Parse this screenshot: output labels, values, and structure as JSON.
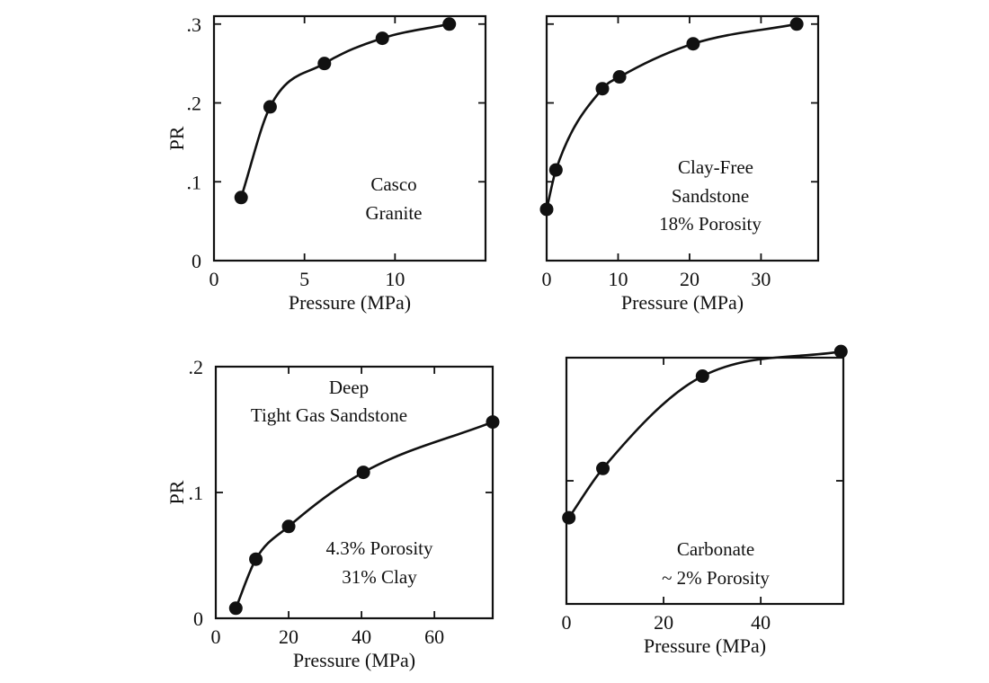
{
  "chart_data": [
    {
      "type": "scatter",
      "title": "",
      "xlabel": "Pressure (MPa)",
      "ylabel": "PR",
      "xlim": [
        0,
        15
      ],
      "ylim": [
        0,
        0.31
      ],
      "xticks": [
        0,
        5,
        10
      ],
      "xtick_labels": [
        "0",
        "5",
        "10"
      ],
      "yticks": [
        0,
        0.1,
        0.2,
        0.3
      ],
      "ytick_labels": [
        "0",
        ".1",
        ".2",
        ".3"
      ],
      "series": [
        {
          "x": [
            1.5,
            3.1,
            6.1,
            9.3,
            13.0
          ],
          "values": [
            0.08,
            0.195,
            0.25,
            0.282,
            0.3
          ]
        }
      ],
      "annotations": [
        "Casco",
        "Granite"
      ],
      "grid": false
    },
    {
      "type": "scatter",
      "title": "",
      "xlabel": "Pressure (MPa)",
      "ylabel": "",
      "xlim": [
        0,
        38
      ],
      "ylim": [
        0,
        0.31
      ],
      "xticks": [
        0,
        10,
        20,
        30
      ],
      "xtick_labels": [
        "0",
        "10",
        "20",
        "30"
      ],
      "yticks": [
        0,
        0.1,
        0.2,
        0.3
      ],
      "ytick_labels": [],
      "series": [
        {
          "x": [
            0,
            1.3,
            7.8,
            10.2,
            20.5,
            35.0
          ],
          "values": [
            0.065,
            0.115,
            0.218,
            0.233,
            0.275,
            0.3
          ]
        }
      ],
      "annotations": [
        "Clay-Free",
        "Sandstone",
        "18% Porosity"
      ],
      "grid": false
    },
    {
      "type": "scatter",
      "title": "",
      "xlabel": "Pressure (MPa)",
      "ylabel": "PR",
      "xlim": [
        0,
        76
      ],
      "ylim": [
        0,
        0.2
      ],
      "xticks": [
        0,
        20,
        40,
        60
      ],
      "xtick_labels": [
        "0",
        "20",
        "40",
        "60"
      ],
      "yticks": [
        0,
        0.1,
        0.2
      ],
      "ytick_labels": [
        "0",
        ".1",
        ".2"
      ],
      "series": [
        {
          "x": [
            5.5,
            11,
            20,
            40.5,
            76
          ],
          "values": [
            0.008,
            0.047,
            0.073,
            0.116,
            0.156
          ]
        }
      ],
      "annotations": [
        "Deep",
        "Tight Gas Sandstone",
        "4.3% Porosity",
        "31% Clay"
      ],
      "grid": false
    },
    {
      "type": "scatter",
      "title": "",
      "xlabel": "Pressure (MPa)",
      "ylabel": "",
      "xlim": [
        0,
        57
      ],
      "ylim": [
        0,
        0.2
      ],
      "xticks": [
        0,
        20,
        40
      ],
      "xtick_labels": [
        "0",
        "20",
        "40"
      ],
      "yticks": [
        0,
        0.1,
        0.2
      ],
      "ytick_labels": [],
      "series": [
        {
          "x": [
            0.5,
            7.5,
            28,
            56.5
          ],
          "values": [
            0.07,
            0.11,
            0.185,
            0.205
          ]
        }
      ],
      "annotations": [
        "Carbonate",
        "~ 2% Porosity"
      ],
      "grid": false
    }
  ]
}
